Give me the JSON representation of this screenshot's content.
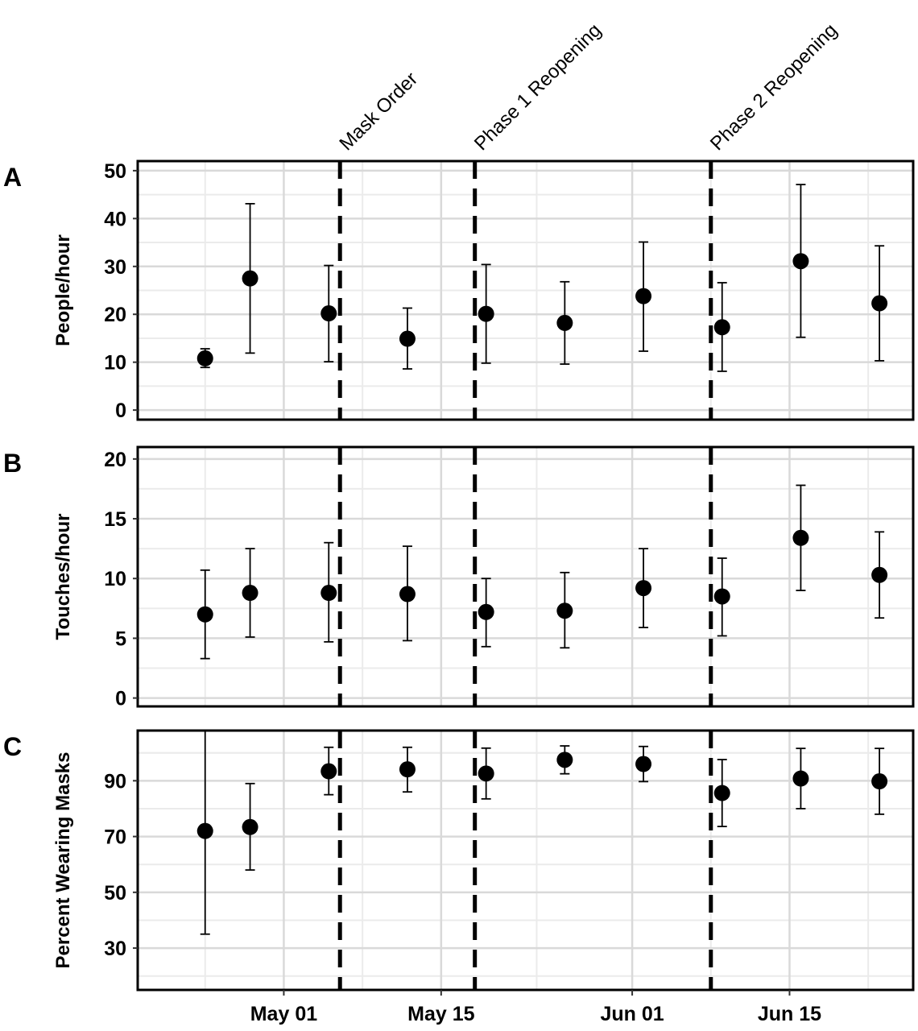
{
  "chart_data": {
    "type": "scatter",
    "x_axis": {
      "ticks": [
        {
          "date": "2020-05-01",
          "label": "May 01"
        },
        {
          "date": "2020-05-15",
          "label": "May 15"
        },
        {
          "date": "2020-06-01",
          "label": "Jun 01"
        },
        {
          "date": "2020-06-15",
          "label": "Jun 15"
        }
      ],
      "range": [
        "2020-04-18",
        "2020-06-26"
      ]
    },
    "events": [
      {
        "date": "2020-05-06",
        "label": "Mask Order"
      },
      {
        "date": "2020-05-18",
        "label": "Phase 1 Reopening"
      },
      {
        "date": "2020-06-08",
        "label": "Phase 2 Reopening"
      }
    ],
    "panels": [
      {
        "letter": "A",
        "ylabel": "People/hour",
        "ylim": [
          -2,
          52
        ],
        "yticks": [
          0,
          10,
          20,
          30,
          40,
          50
        ],
        "points": [
          {
            "date": "2020-04-24",
            "y": 10.8,
            "lo": 8.9,
            "hi": 12.8
          },
          {
            "date": "2020-04-28",
            "y": 27.5,
            "lo": 11.9,
            "hi": 43.1
          },
          {
            "date": "2020-05-05",
            "y": 20.2,
            "lo": 10.1,
            "hi": 30.2
          },
          {
            "date": "2020-05-12",
            "y": 14.9,
            "lo": 8.6,
            "hi": 21.3
          },
          {
            "date": "2020-05-19",
            "y": 20.1,
            "lo": 9.8,
            "hi": 30.4
          },
          {
            "date": "2020-05-26",
            "y": 18.2,
            "lo": 9.6,
            "hi": 26.8
          },
          {
            "date": "2020-06-02",
            "y": 23.8,
            "lo": 12.3,
            "hi": 35.1
          },
          {
            "date": "2020-06-09",
            "y": 17.3,
            "lo": 8.1,
            "hi": 26.6
          },
          {
            "date": "2020-06-16",
            "y": 31.1,
            "lo": 15.2,
            "hi": 47.1
          },
          {
            "date": "2020-06-23",
            "y": 22.3,
            "lo": 10.3,
            "hi": 34.3
          }
        ]
      },
      {
        "letter": "B",
        "ylabel": "Touches/hour",
        "ylim": [
          -0.7,
          21
        ],
        "yticks": [
          0,
          5,
          10,
          15,
          20
        ],
        "points": [
          {
            "date": "2020-04-24",
            "y": 7.0,
            "lo": 3.3,
            "hi": 10.7
          },
          {
            "date": "2020-04-28",
            "y": 8.8,
            "lo": 5.1,
            "hi": 12.5
          },
          {
            "date": "2020-05-05",
            "y": 8.8,
            "lo": 4.7,
            "hi": 13.0
          },
          {
            "date": "2020-05-12",
            "y": 8.7,
            "lo": 4.8,
            "hi": 12.7
          },
          {
            "date": "2020-05-19",
            "y": 7.2,
            "lo": 4.3,
            "hi": 10.0
          },
          {
            "date": "2020-05-26",
            "y": 7.3,
            "lo": 4.2,
            "hi": 10.5
          },
          {
            "date": "2020-06-02",
            "y": 9.2,
            "lo": 5.9,
            "hi": 12.5
          },
          {
            "date": "2020-06-09",
            "y": 8.5,
            "lo": 5.2,
            "hi": 11.7
          },
          {
            "date": "2020-06-16",
            "y": 13.4,
            "lo": 9.0,
            "hi": 17.8
          },
          {
            "date": "2020-06-23",
            "y": 10.3,
            "lo": 6.7,
            "hi": 13.9
          }
        ]
      },
      {
        "letter": "C",
        "ylabel": "Percent Wearing Masks",
        "ylim": [
          15,
          108
        ],
        "yticks": [
          30,
          50,
          70,
          90
        ],
        "points": [
          {
            "date": "2020-04-24",
            "y": 72.0,
            "lo": 35.0,
            "hi": 108.0
          },
          {
            "date": "2020-04-28",
            "y": 73.4,
            "lo": 58.0,
            "hi": 89.0
          },
          {
            "date": "2020-05-05",
            "y": 93.4,
            "lo": 85.0,
            "hi": 102.0
          },
          {
            "date": "2020-05-12",
            "y": 94.1,
            "lo": 86.0,
            "hi": 102.0
          },
          {
            "date": "2020-05-19",
            "y": 92.6,
            "lo": 83.5,
            "hi": 101.7
          },
          {
            "date": "2020-05-26",
            "y": 97.5,
            "lo": 92.5,
            "hi": 102.5
          },
          {
            "date": "2020-06-02",
            "y": 96.0,
            "lo": 89.7,
            "hi": 102.3
          },
          {
            "date": "2020-06-09",
            "y": 85.6,
            "lo": 73.6,
            "hi": 97.6
          },
          {
            "date": "2020-06-16",
            "y": 90.8,
            "lo": 80.0,
            "hi": 101.6
          },
          {
            "date": "2020-06-23",
            "y": 89.8,
            "lo": 78.0,
            "hi": 101.6
          }
        ]
      }
    ]
  }
}
